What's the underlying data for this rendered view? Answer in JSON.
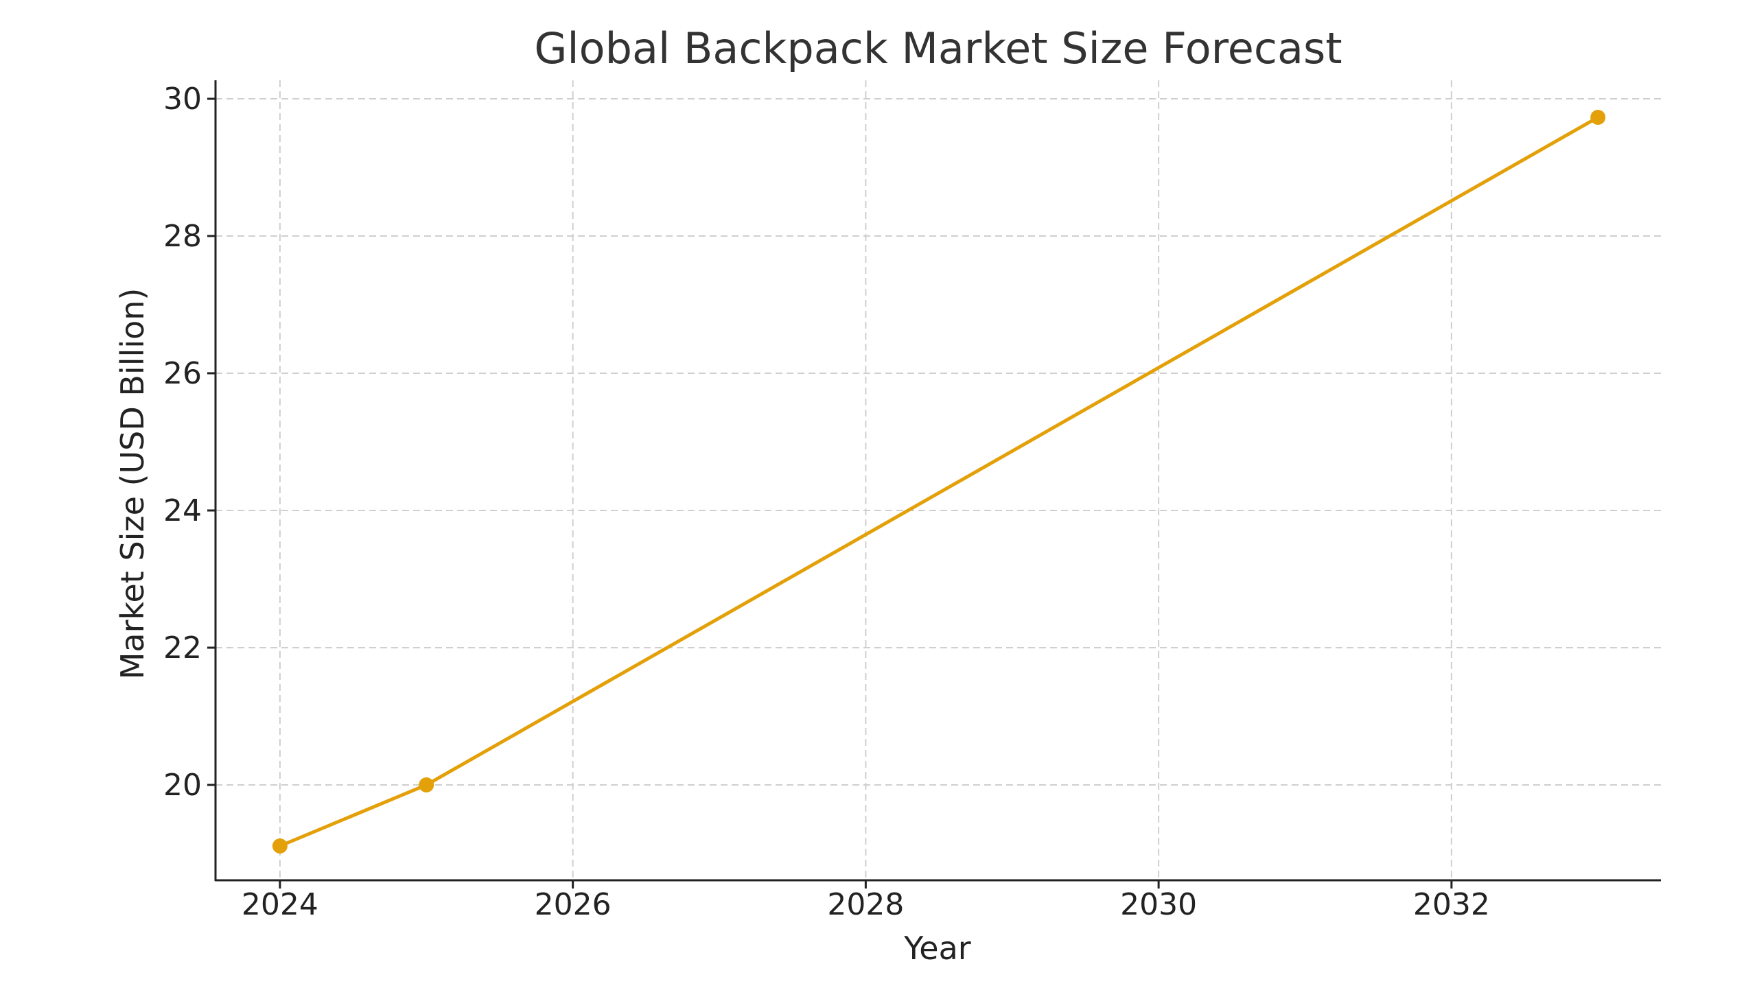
{
  "chart_data": {
    "type": "line",
    "title": "Global Backpack Market Size Forecast",
    "xlabel": "Year",
    "ylabel": "Market Size (USD Billion)",
    "x": [
      2024,
      2025,
      2033
    ],
    "series": [
      {
        "name": "Market Size",
        "values": [
          19.11,
          20.0,
          29.73
        ],
        "color": "#E3A008",
        "marker": "circle"
      }
    ],
    "xticks": [
      2024,
      2026,
      2028,
      2030,
      2032
    ],
    "yticks": [
      20,
      22,
      24,
      26,
      28,
      30
    ],
    "xlim": [
      2023.56,
      2033.43
    ],
    "ylim": [
      18.61,
      30.27
    ],
    "grid": true,
    "grid_style": "dashed",
    "legend": null
  }
}
